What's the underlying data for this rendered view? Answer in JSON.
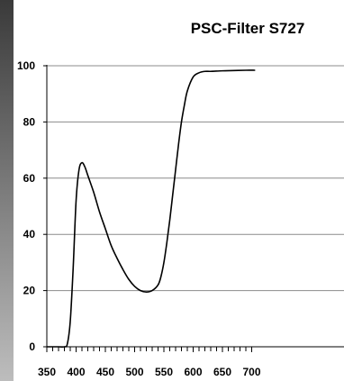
{
  "chart_data": {
    "type": "line",
    "title": "PSC-Filter S727",
    "xlabel": "",
    "ylabel": "",
    "xlim": [
      350,
      705
    ],
    "ylim": [
      0,
      100
    ],
    "x_ticks": [
      350,
      400,
      450,
      500,
      550,
      600,
      650,
      700
    ],
    "x_tick_labels": [
      "350",
      "400",
      "450",
      "500",
      "550",
      "600",
      "650",
      "700"
    ],
    "x_minor_step": 10,
    "y_ticks": [
      0,
      20,
      40,
      60,
      80,
      100
    ],
    "y_tick_labels": [
      "0",
      "20",
      "40",
      "60",
      "80",
      "100"
    ],
    "grid": "horizontal",
    "legend": "none",
    "series": [
      {
        "color": "#000000",
        "x": [
          350,
          370,
          380,
          385,
          390,
          395,
          400,
          405,
          410,
          415,
          420,
          430,
          440,
          450,
          460,
          470,
          480,
          490,
          500,
          510,
          520,
          530,
          540,
          545,
          550,
          555,
          560,
          565,
          570,
          575,
          580,
          585,
          590,
          600,
          610,
          620,
          630,
          650,
          670,
          690,
          705
        ],
        "y": [
          0,
          0,
          0,
          1,
          9,
          28,
          52,
          63,
          65.5,
          64,
          61,
          55,
          48,
          42,
          36,
          31.5,
          27.5,
          24,
          21.5,
          20,
          19.5,
          20,
          22,
          25,
          30,
          37,
          45,
          54,
          63,
          72,
          80,
          86,
          91,
          96,
          97.5,
          98,
          98,
          98.2,
          98.3,
          98.4,
          98.4
        ]
      }
    ]
  },
  "background": {
    "left_gradient": [
      "#3a3a3a",
      "#bdbdbd"
    ]
  }
}
